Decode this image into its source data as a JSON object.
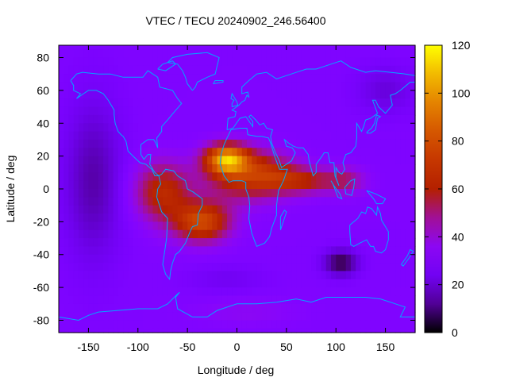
{
  "chart_data": {
    "type": "heatmap",
    "title": "VTEC / TECU 20240902_246.56400",
    "xlabel": "Longitude / deg",
    "ylabel": "Latitude / deg",
    "xlim": [
      -180,
      180
    ],
    "ylim": [
      -87.5,
      87.5
    ],
    "xticks": [
      -150,
      -100,
      -50,
      0,
      50,
      100,
      150
    ],
    "yticks": [
      -80,
      -60,
      -40,
      -20,
      0,
      20,
      40,
      60,
      80
    ],
    "colorbar": {
      "min": 0,
      "max": 120,
      "ticks": [
        0,
        20,
        40,
        60,
        80,
        100,
        120
      ],
      "colormap": "gnuplot-pm3d (black-purple-red-orange-yellow)"
    },
    "grid": {
      "lon_step": 5,
      "lat_step": 5
    },
    "field_description": "background ~30 TECU; equatorial ionization anomaly crest peaking near (-10, 18) ~105 TECU; southern crest near (-35,-20) ~80; band over Africa/Indian Ocean ~65; Pacific minimum ~12; southern minimum near (105,-45) ~5",
    "colors": {
      "coastline": "#00a8ff",
      "frame": "#000000"
    }
  }
}
